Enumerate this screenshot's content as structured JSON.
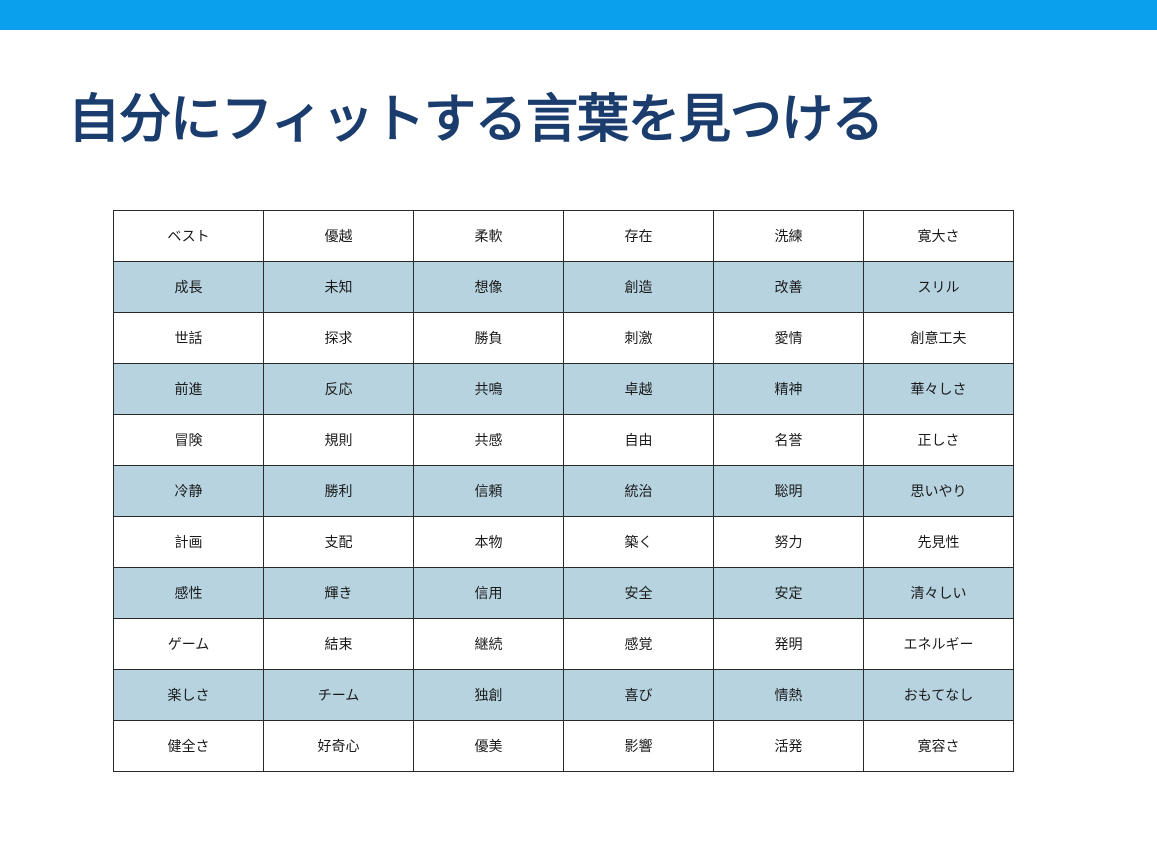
{
  "slide": {
    "title": "自分にフィットする言葉を見つける",
    "accent_color": "#0aa0ee",
    "title_color": "#1b3d6e",
    "stripe_color": "#b7d3e0"
  },
  "words": [
    [
      "ベスト",
      "優越",
      "柔軟",
      "存在",
      "洗練",
      "寛大さ"
    ],
    [
      "成長",
      "未知",
      "想像",
      "創造",
      "改善",
      "スリル"
    ],
    [
      "世話",
      "探求",
      "勝負",
      "刺激",
      "愛情",
      "創意工夫"
    ],
    [
      "前進",
      "反応",
      "共鳴",
      "卓越",
      "精神",
      "華々しさ"
    ],
    [
      "冒険",
      "規則",
      "共感",
      "自由",
      "名誉",
      "正しさ"
    ],
    [
      "冷静",
      "勝利",
      "信頼",
      "統治",
      "聡明",
      "思いやり"
    ],
    [
      "計画",
      "支配",
      "本物",
      "築く",
      "努力",
      "先見性"
    ],
    [
      "感性",
      "輝き",
      "信用",
      "安全",
      "安定",
      "清々しい"
    ],
    [
      "ゲーム",
      "結束",
      "継続",
      "感覚",
      "発明",
      "エネルギー"
    ],
    [
      "楽しさ",
      "チーム",
      "独創",
      "喜び",
      "情熱",
      "おもてなし"
    ],
    [
      "健全さ",
      "好奇心",
      "優美",
      "影響",
      "活発",
      "寛容さ"
    ]
  ]
}
